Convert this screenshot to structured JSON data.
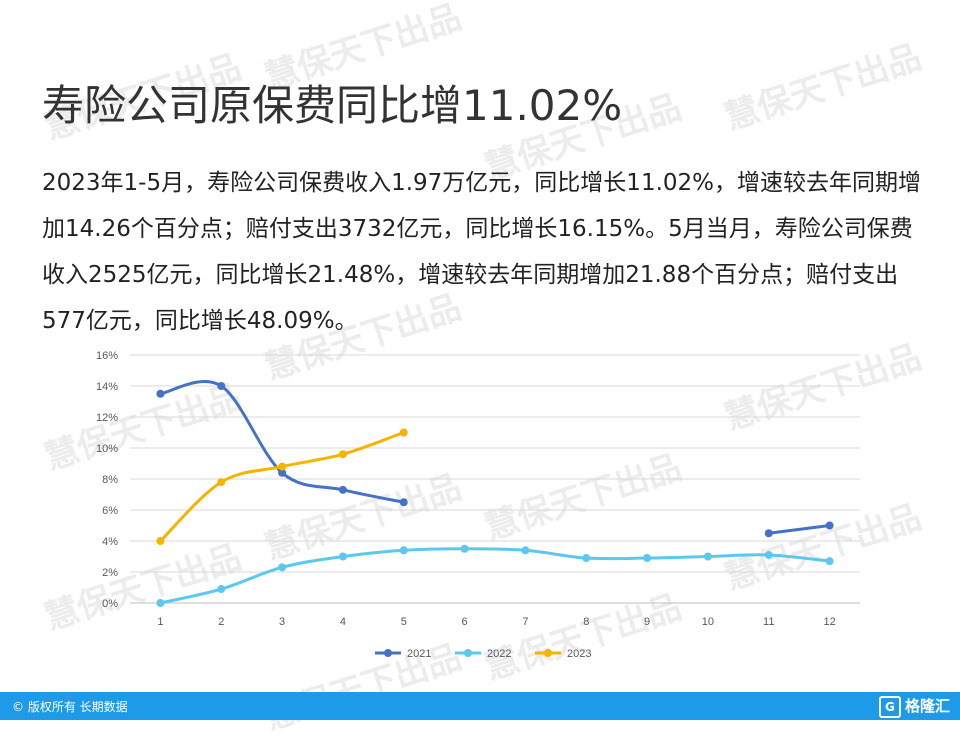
{
  "title": "寿险公司原保费同比增11.02%",
  "paragraph": "2023年1-5月，寿险公司保费收入1.97万亿元，同比增长11.02%，增速较去年同期增加14.26个百分点；赔付支出3732亿元，同比增长16.15%。5月当月，寿险公司保费收入2525亿元，同比增长21.48%，增速较去年同期增加21.88个百分点；赔付支出577亿元，同比增长48.09%。",
  "watermark": "慧保天下出品",
  "footer": {
    "copyright": "© 版权所有 长期数据",
    "logo_icon": "G",
    "logo_text": "格隆汇"
  },
  "chart_data": {
    "type": "line",
    "x": [
      1,
      2,
      3,
      4,
      5,
      6,
      7,
      8,
      9,
      10,
      11,
      12
    ],
    "ylim": [
      0,
      16
    ],
    "yticks": [
      "0%",
      "2%",
      "4%",
      "6%",
      "8%",
      "10%",
      "12%",
      "14%",
      "16%"
    ],
    "grid": true,
    "legend_position": "bottom",
    "series": [
      {
        "name": "2021",
        "color": "#4472c4",
        "values": [
          13.5,
          14.0,
          8.4,
          7.3,
          6.5,
          null,
          null,
          null,
          null,
          null,
          4.5,
          5.0
        ]
      },
      {
        "name": "2022",
        "color": "#5bc8ee",
        "values": [
          0.0,
          0.9,
          2.3,
          3.0,
          3.4,
          3.5,
          3.4,
          2.9,
          2.9,
          3.0,
          3.1,
          2.7
        ]
      },
      {
        "name": "2023",
        "color": "#f4b400",
        "values": [
          4.0,
          7.8,
          8.8,
          9.6,
          11.0,
          null,
          null,
          null,
          null,
          null,
          null,
          null
        ]
      }
    ]
  }
}
